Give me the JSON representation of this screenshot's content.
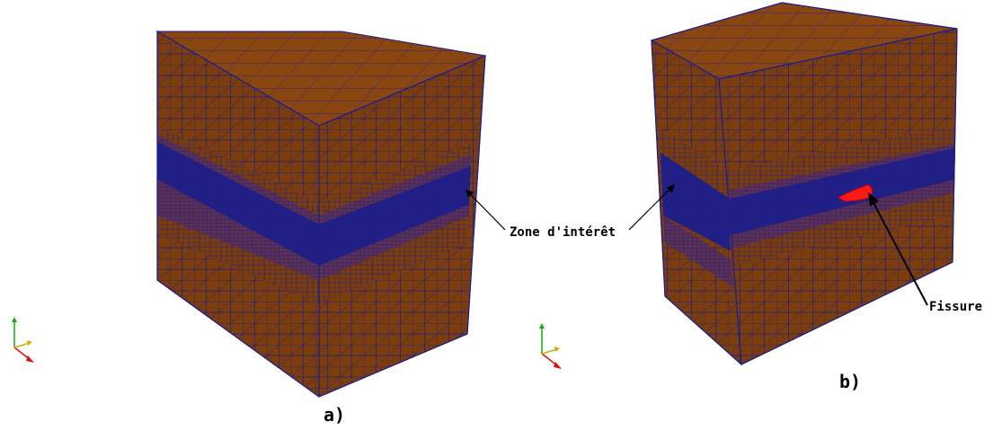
{
  "labels": {
    "zone": "Zone d'intérêt",
    "crack": "Fissure",
    "panel_a": "a)",
    "panel_b": "b)"
  },
  "colors": {
    "material": "#7b3d0c",
    "material_light": "#8a4611",
    "material_dark": "#6a3308",
    "mesh_line": "#1c1d8c",
    "refined_band": "#23207a",
    "crack": "#ff1a1a",
    "axis_x": "#e01010",
    "axis_y": "#10b010",
    "axis_z": "#c8b400"
  },
  "icons": {
    "triad_a": "xyz-axes-icon",
    "triad_b": "xyz-axes-icon"
  }
}
